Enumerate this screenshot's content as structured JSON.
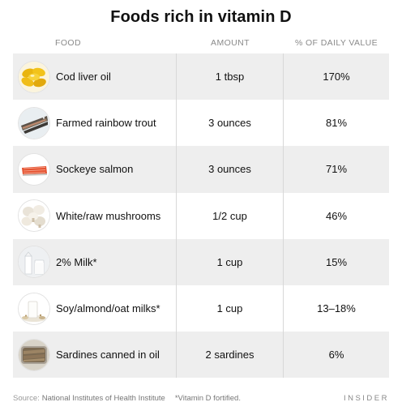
{
  "title": "Foods rich in vitamin D",
  "columns": {
    "food": "FOOD",
    "amount": "AMOUNT",
    "daily_value": "% OF DAILY VALUE"
  },
  "rows": [
    {
      "icon": "cod-liver-oil-capsules-icon",
      "food": "Cod liver oil",
      "amount": "1 tbsp",
      "daily_value": "170%"
    },
    {
      "icon": "rainbow-trout-icon",
      "food": "Farmed rainbow trout",
      "amount": "3 ounces",
      "daily_value": "81%"
    },
    {
      "icon": "salmon-fillet-icon",
      "food": "Sockeye salmon",
      "amount": "3 ounces",
      "daily_value": "71%"
    },
    {
      "icon": "mushrooms-icon",
      "food": "White/raw mushrooms",
      "amount": "1/2 cup",
      "daily_value": "46%"
    },
    {
      "icon": "milk-carton-icon",
      "food": "2% Milk*",
      "amount": "1 cup",
      "daily_value": "15%"
    },
    {
      "icon": "oat-milk-glass-icon",
      "food": "Soy/almond/oat milks*",
      "amount": "1 cup",
      "daily_value": "13–18%"
    },
    {
      "icon": "sardine-tin-icon",
      "food": "Sardines canned in oil",
      "amount": "2 sardines",
      "daily_value": "6%"
    }
  ],
  "footer": {
    "source_label": "Source:",
    "source": "National Institutes of Health Institute",
    "note": "*Vitamin D fortified.",
    "brand": "INSIDER"
  },
  "colors": {
    "row_shade": "#eeeeee",
    "text": "#111111",
    "muted": "#8a8a8a"
  }
}
